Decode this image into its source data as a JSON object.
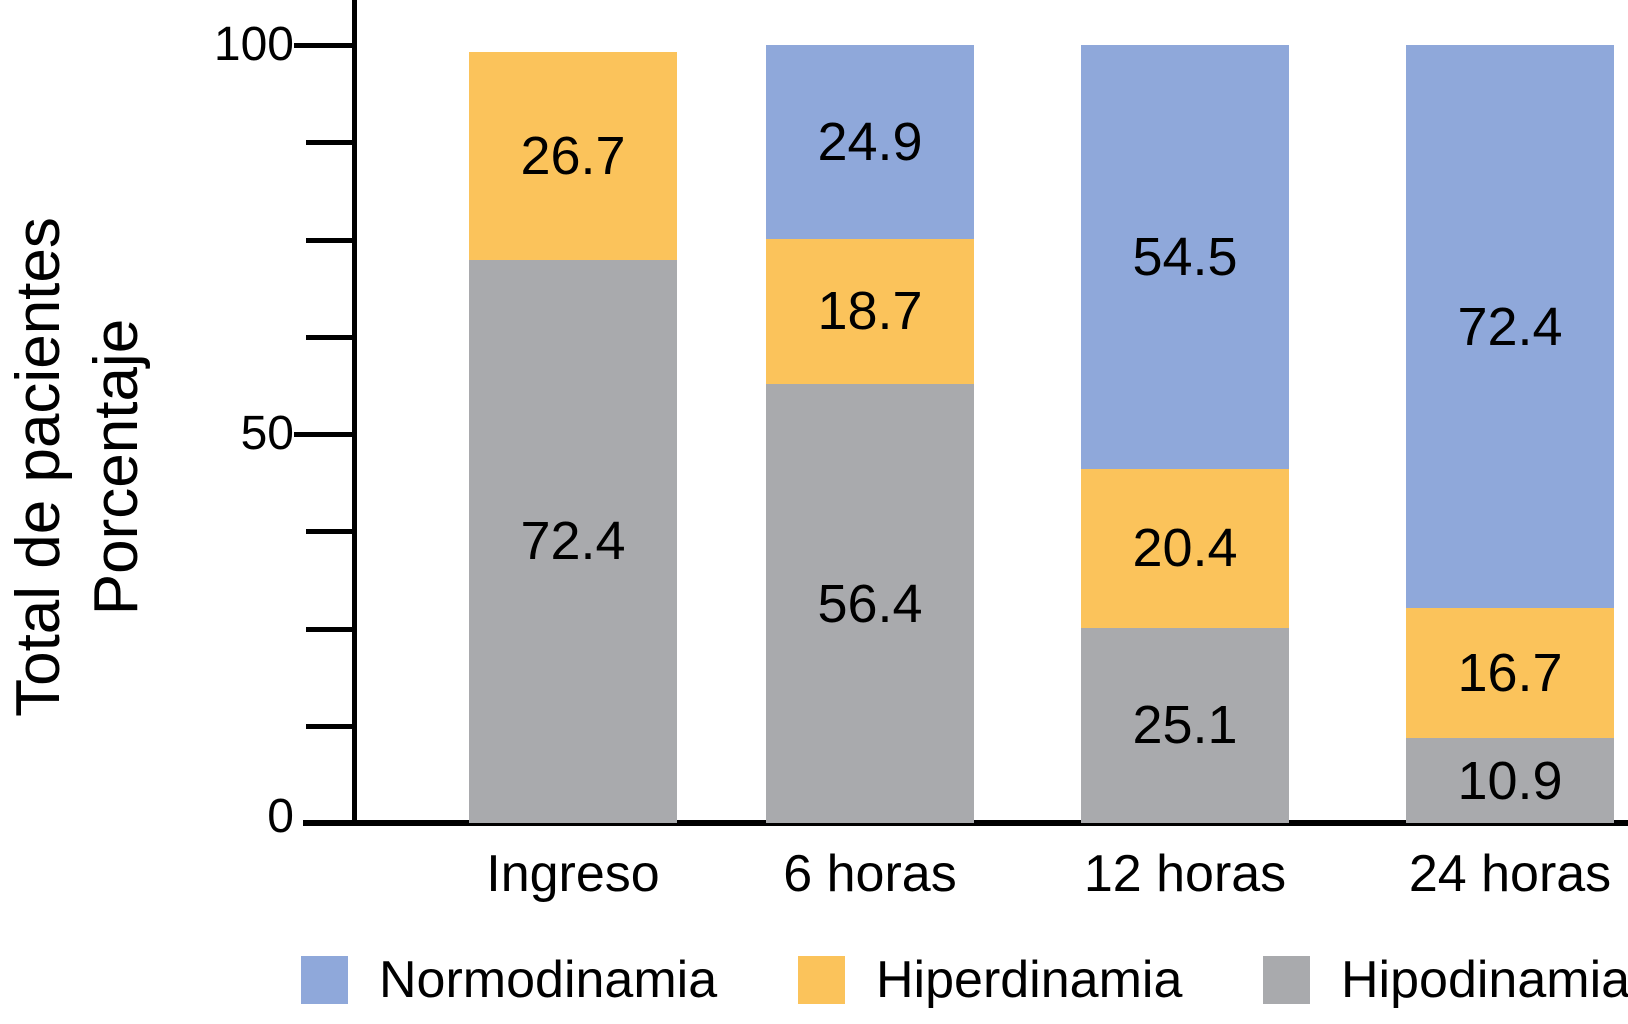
{
  "page": {
    "background": "#FFFFFF"
  },
  "chart_data": {
    "type": "bar",
    "variant": "stacked-percentage-column",
    "title": "",
    "categories": [
      "Ingreso",
      "6 horas",
      "12 horas",
      "24 horas"
    ],
    "series": [
      {
        "name": "Normodinamia",
        "color": "#8FA8DA",
        "values": [
          null,
          24.9,
          54.5,
          72.4
        ]
      },
      {
        "name": "Hiperdinamia",
        "color": "#FBC35B",
        "values": [
          26.7,
          18.7,
          20.4,
          16.7
        ]
      },
      {
        "name": "Hipodinamia",
        "color": "#A9AAAD",
        "values": [
          72.4,
          56.4,
          25.1,
          10.9
        ]
      }
    ],
    "stack_order_bottom_to_top": [
      "Hipodinamia",
      "Hiperdinamia",
      "Normodinamia"
    ],
    "ylabel_lines": [
      "Total de pacientes",
      "Porcentaje"
    ],
    "ylim": [
      0,
      100
    ],
    "yticks": [
      0,
      50,
      100
    ],
    "minor_tick_step": 12.5,
    "grid": false,
    "legend_position": "bottom",
    "value_label_decimals": 1,
    "axis_color": "#000000",
    "text_color": "#000000"
  }
}
